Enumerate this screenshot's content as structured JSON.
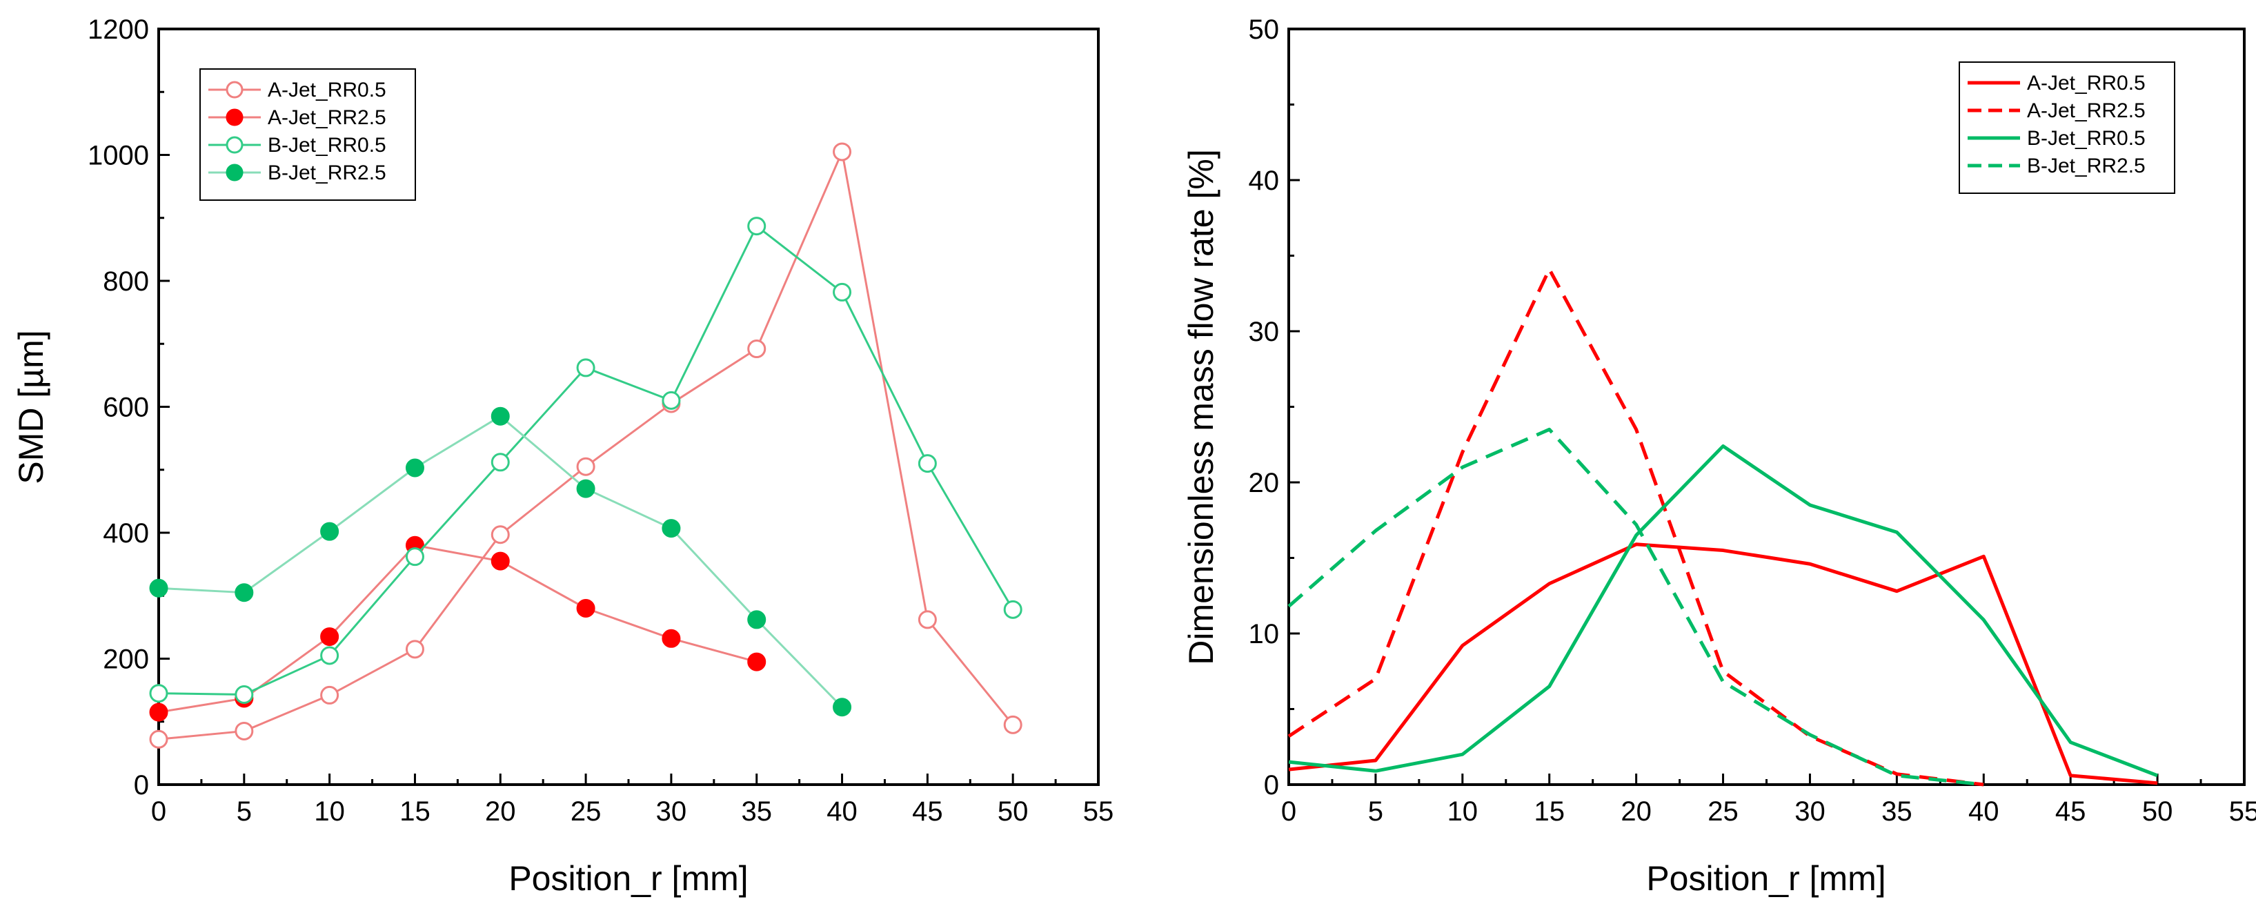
{
  "chart_data": [
    {
      "type": "line",
      "title": "",
      "xlabel": "Position_r [mm]",
      "ylabel": "SMD [µm]",
      "xlim": [
        0,
        55
      ],
      "ylim": [
        0,
        1200
      ],
      "xticks": [
        0,
        5,
        10,
        15,
        20,
        25,
        30,
        35,
        40,
        45,
        50,
        55
      ],
      "yticks": [
        0,
        200,
        400,
        600,
        800,
        1000,
        1200
      ],
      "grid": false,
      "legend_position": "top-left",
      "series": [
        {
          "name": "A-Jet_RR0.5",
          "color": "#f08080",
          "marker": "open-circle",
          "line": "solid",
          "x": [
            0,
            5,
            10,
            15,
            20,
            25,
            30,
            35,
            40,
            45,
            50
          ],
          "y": [
            72,
            85,
            142,
            215,
            397,
            505,
            605,
            692,
            1005,
            262,
            95
          ]
        },
        {
          "name": "A-Jet_RR2.5",
          "color": "#ff0000",
          "line_color": "#f08080",
          "marker": "filled-circle",
          "line": "solid",
          "x": [
            0,
            5,
            10,
            15,
            20,
            25,
            30,
            35
          ],
          "y": [
            115,
            137,
            235,
            380,
            355,
            280,
            232,
            195
          ]
        },
        {
          "name": "B-Jet_RR0.5",
          "color": "#33cc88",
          "marker": "open-circle",
          "line": "solid",
          "x": [
            0,
            5,
            10,
            15,
            20,
            25,
            30,
            35,
            40,
            45,
            50
          ],
          "y": [
            145,
            143,
            205,
            362,
            512,
            662,
            610,
            887,
            782,
            510,
            278
          ]
        },
        {
          "name": "B-Jet_RR2.5",
          "color": "#00bb66",
          "line_color": "#88ddb8",
          "marker": "filled-circle",
          "line": "solid",
          "x": [
            0,
            5,
            10,
            15,
            20,
            25,
            30,
            35,
            40
          ],
          "y": [
            312,
            305,
            402,
            503,
            585,
            470,
            407,
            262,
            123
          ]
        }
      ]
    },
    {
      "type": "line",
      "title": "",
      "xlabel": "Position_r [mm]",
      "ylabel": "Dimensionless mass flow rate [%]",
      "xlim": [
        0,
        55
      ],
      "ylim": [
        0,
        50
      ],
      "xticks": [
        0,
        5,
        10,
        15,
        20,
        25,
        30,
        35,
        40,
        45,
        50,
        55
      ],
      "yticks": [
        0,
        10,
        20,
        30,
        40,
        50
      ],
      "grid": false,
      "legend_position": "top-right",
      "series": [
        {
          "name": "A-Jet_RR0.5",
          "color": "#ff0000",
          "line": "solid",
          "x": [
            0,
            5,
            10,
            15,
            20,
            25,
            30,
            35,
            40,
            45,
            50
          ],
          "y": [
            1.0,
            1.6,
            9.2,
            13.3,
            15.9,
            15.5,
            14.6,
            12.8,
            15.1,
            0.6,
            0.1
          ]
        },
        {
          "name": "A-Jet_RR2.5",
          "color": "#ff0000",
          "line": "dashed",
          "x": [
            0,
            5,
            10,
            15,
            20,
            25,
            30,
            35,
            40
          ],
          "y": [
            3.2,
            7.0,
            22.0,
            34.1,
            23.5,
            7.5,
            3.2,
            0.7,
            0.0
          ]
        },
        {
          "name": "B-Jet_RR0.5",
          "color": "#00bb66",
          "line": "solid",
          "x": [
            0,
            5,
            10,
            15,
            20,
            25,
            30,
            35,
            40,
            45,
            50
          ],
          "y": [
            1.5,
            0.9,
            2.0,
            6.5,
            16.5,
            22.4,
            18.5,
            16.7,
            10.9,
            2.8,
            0.6
          ]
        },
        {
          "name": "B-Jet_RR2.5",
          "color": "#00bb66",
          "line": "dashed",
          "x": [
            0,
            5,
            10,
            15,
            20,
            25,
            30,
            35,
            40
          ],
          "y": [
            11.8,
            16.8,
            21.0,
            23.5,
            17.2,
            6.8,
            3.3,
            0.6,
            0.0
          ]
        }
      ]
    }
  ]
}
